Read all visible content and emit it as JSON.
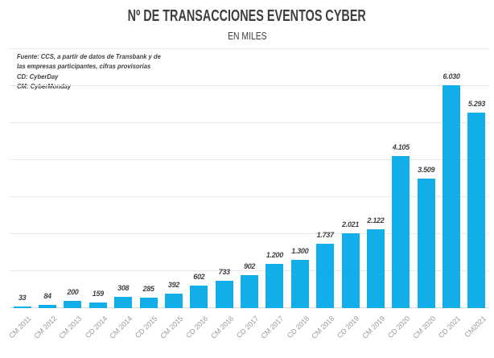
{
  "title": "Nº DE TRANSACCIONES EVENTOS CYBER",
  "subtitle": "EN MILES",
  "source_note": "Fuente: CCS, a partir de datos de Transbank y de\nlas empresas participantes, cifras provisorias\nCD: CyberDay\nCM: CyberMonday",
  "colors": {
    "background": "#FFFFFF",
    "bar": "#11AEEA",
    "title_text": "#3F3F3F",
    "value_label": "#3F3F3F",
    "tick_label": "#9A9A9A",
    "gridline": "#E8E8E8",
    "axis_line": "#D8D8D8"
  },
  "chart_data": {
    "type": "bar",
    "title": "Nº DE TRANSACCIONES EVENTOS CYBER",
    "subtitle": "EN MILES",
    "xlabel": "",
    "ylabel": "",
    "ylim": [
      0,
      7000
    ],
    "gridline_interval": 1000,
    "grid": "horizontal",
    "legend": "none",
    "y_axis_labels": "none",
    "categories": [
      "CM 2011",
      "CM 2012",
      "CM 2013",
      "CD 2014",
      "CM 2014",
      "CD 2015",
      "CM 2015",
      "CD 2016",
      "CM 2016",
      "CD 2017",
      "CM 2017",
      "CD 2018",
      "CM 2018",
      "CD 2019",
      "CM 2019",
      "CD 2020",
      "CM 2020",
      "CD 2021",
      "CM2021"
    ],
    "values": [
      33,
      84,
      200,
      159,
      308,
      285,
      392,
      602,
      733,
      902,
      1200,
      1300,
      1737,
      2021,
      2122,
      4105,
      3509,
      6030,
      5293
    ],
    "value_labels": [
      "33",
      "84",
      "200",
      "159",
      "308",
      "285",
      "392",
      "602",
      "733",
      "902",
      "1.200",
      "1.300",
      "1.737",
      "2.021",
      "2.122",
      "4.105",
      "3.509",
      "6.030",
      "5.293"
    ]
  }
}
